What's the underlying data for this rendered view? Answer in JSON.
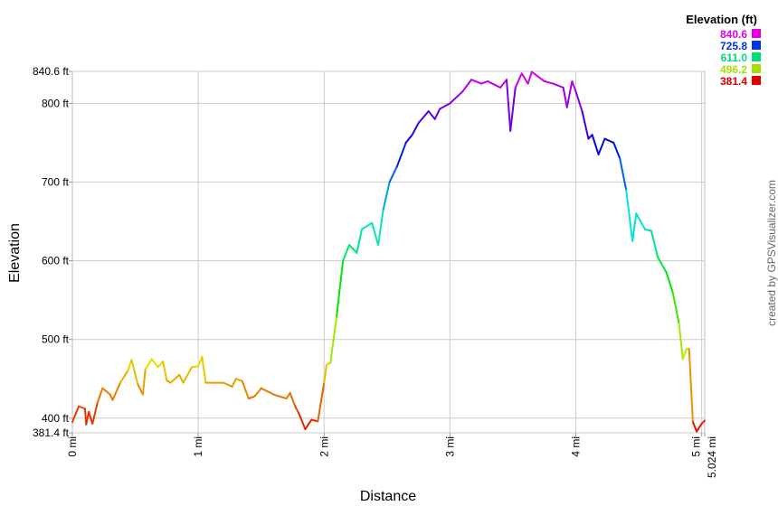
{
  "chart_data": {
    "type": "line",
    "xlabel": "Distance",
    "ylabel": "Elevation",
    "credit": "created by GPSVisualizer.com",
    "xlim": [
      0,
      5.024
    ],
    "ylim": [
      381.4,
      840.6
    ],
    "grid": true,
    "x_ticks": [
      {
        "value": 0,
        "label": "0 mi"
      },
      {
        "value": 1,
        "label": "1 mi"
      },
      {
        "value": 2,
        "label": "2 mi"
      },
      {
        "value": 3,
        "label": "3 mi"
      },
      {
        "value": 4,
        "label": "4 mi"
      },
      {
        "value": 5,
        "label": "5 mi"
      },
      {
        "value": 5.024,
        "label": "5.024 mi"
      }
    ],
    "y_ticks": [
      {
        "value": 381.4,
        "label": "381.4 ft"
      },
      {
        "value": 400,
        "label": "400 ft"
      },
      {
        "value": 500,
        "label": "500 ft"
      },
      {
        "value": 600,
        "label": "600 ft"
      },
      {
        "value": 700,
        "label": "700 ft"
      },
      {
        "value": 800,
        "label": "800 ft"
      },
      {
        "value": 840.6,
        "label": "840.6 ft"
      }
    ],
    "legend": {
      "title": "Elevation (ft)",
      "position": "top-right",
      "entries": [
        {
          "label": "840.6",
          "color": "#e000e0"
        },
        {
          "label": "725.8",
          "color": "#0033e6"
        },
        {
          "label": "611.0",
          "color": "#00dd77"
        },
        {
          "label": "496.2",
          "color": "#aadd00"
        },
        {
          "label": "381.4",
          "color": "#e00000"
        }
      ]
    },
    "x": [
      0,
      0.05,
      0.1,
      0.11,
      0.13,
      0.16,
      0.2,
      0.24,
      0.3,
      0.32,
      0.38,
      0.44,
      0.47,
      0.52,
      0.56,
      0.58,
      0.63,
      0.68,
      0.72,
      0.75,
      0.78,
      0.85,
      0.88,
      0.95,
      1.0,
      1.03,
      1.06,
      1.1,
      1.2,
      1.27,
      1.3,
      1.35,
      1.4,
      1.45,
      1.5,
      1.6,
      1.7,
      1.73,
      1.77,
      1.8,
      1.85,
      1.9,
      1.95,
      2.0,
      2.02,
      2.05,
      2.1,
      2.15,
      2.2,
      2.26,
      2.3,
      2.38,
      2.43,
      2.47,
      2.52,
      2.58,
      2.65,
      2.7,
      2.75,
      2.83,
      2.88,
      2.92,
      3.0,
      3.1,
      3.17,
      3.25,
      3.3,
      3.4,
      3.45,
      3.48,
      3.52,
      3.57,
      3.62,
      3.65,
      3.75,
      3.82,
      3.9,
      3.93,
      3.97,
      4.0,
      4.05,
      4.1,
      4.13,
      4.18,
      4.23,
      4.3,
      4.35,
      4.4,
      4.45,
      4.48,
      4.55,
      4.6,
      4.65,
      4.72,
      4.77,
      4.82,
      4.85,
      4.88,
      4.9,
      4.93,
      4.96,
      5.0,
      5.024
    ],
    "y": [
      395,
      415,
      412,
      392,
      408,
      393,
      420,
      438,
      430,
      423,
      445,
      460,
      474,
      443,
      430,
      462,
      475,
      465,
      472,
      448,
      445,
      455,
      445,
      465,
      466,
      478,
      445,
      445,
      445,
      440,
      450,
      447,
      425,
      428,
      438,
      430,
      425,
      432,
      415,
      406,
      386,
      398,
      396,
      445,
      468,
      470,
      530,
      600,
      620,
      610,
      640,
      648,
      620,
      665,
      700,
      720,
      750,
      760,
      775,
      790,
      780,
      793,
      800,
      815,
      830,
      825,
      828,
      820,
      830,
      765,
      820,
      838,
      825,
      840,
      828,
      825,
      820,
      795,
      828,
      815,
      790,
      755,
      760,
      735,
      755,
      750,
      730,
      690,
      625,
      660,
      640,
      638,
      605,
      585,
      560,
      520,
      475,
      488,
      488,
      395,
      383,
      393,
      397
    ]
  }
}
